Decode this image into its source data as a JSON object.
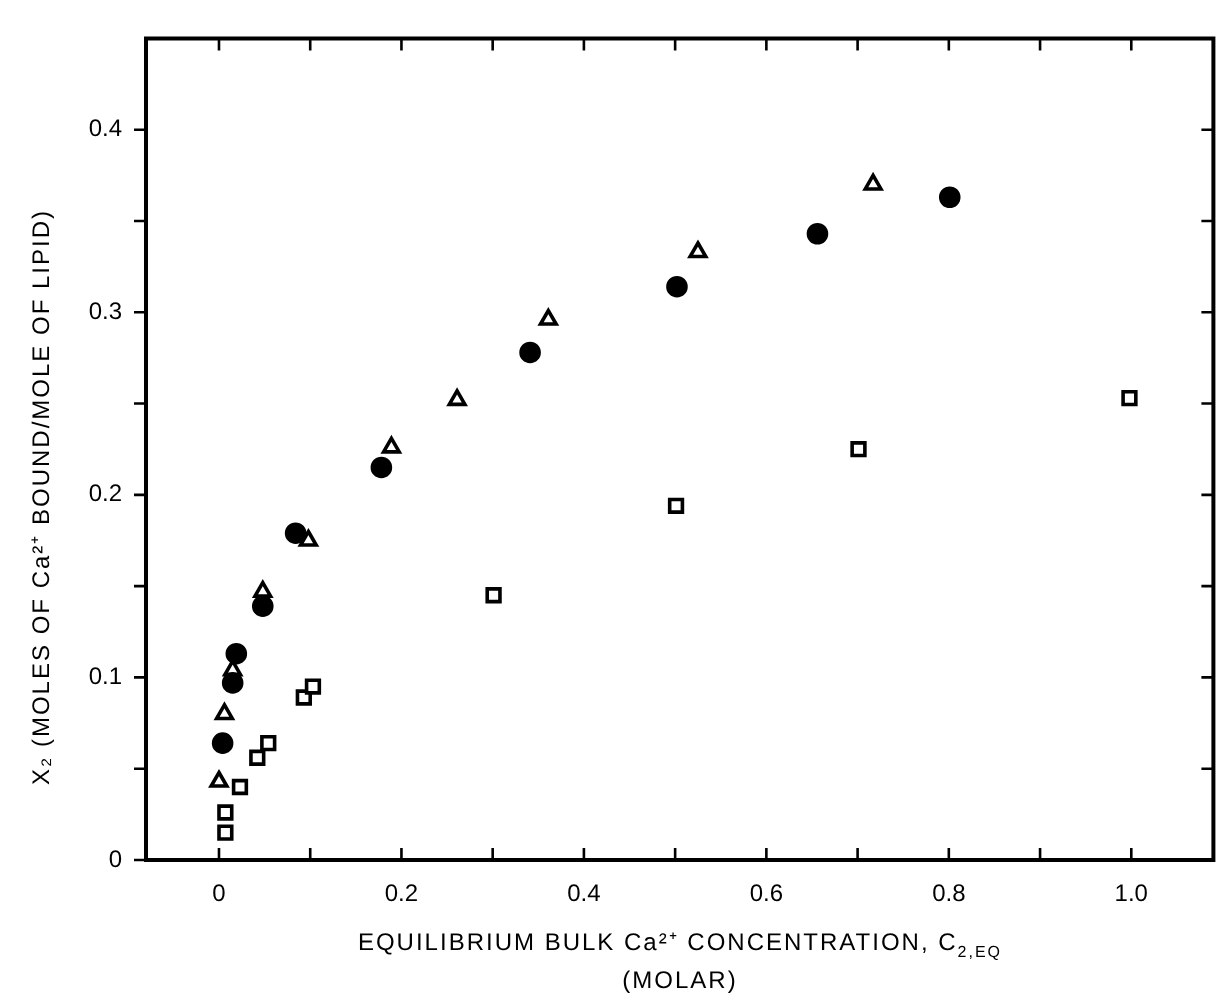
{
  "chart_data": {
    "type": "scatter",
    "xlabel": "EQUILIBRIUM BULK Ca²⁺ CONCENTRATION, C$_{2,EQ}$ (MOLAR)",
    "ylabel": "X₂ (MOLES OF Ca²⁺ BOUND/MOLE OF LIPID)",
    "xlim": [
      -0.08,
      1.09
    ],
    "ylim": [
      0,
      0.45
    ],
    "xticks": [
      0,
      {
        "value": 0.1,
        "label": null
      },
      0.2,
      {
        "value": 0.3,
        "label": null
      },
      0.4,
      {
        "value": 0.5,
        "label": null
      },
      0.6,
      {
        "value": 0.7,
        "label": null
      },
      0.8,
      {
        "value": 0.9,
        "label": null
      },
      {
        "value": 1,
        "label": "1.0"
      }
    ],
    "yticks": [
      0,
      {
        "value": 0.05,
        "label": null
      },
      0.1,
      {
        "value": 0.15,
        "label": null
      },
      0.2,
      {
        "value": 0.25,
        "label": null
      },
      0.3,
      {
        "value": 0.35,
        "label": null
      },
      0.4
    ],
    "grid": false,
    "legend": false,
    "series": [
      {
        "color": "#000000",
        "marker": "circle",
        "x": [
          0.004,
          0.015,
          0.019,
          0.048,
          0.084,
          0.178,
          0.341,
          0.502,
          0.656,
          0.801
        ],
        "values": [
          0.064,
          0.097,
          0.113,
          0.139,
          0.179,
          0.215,
          0.278,
          0.314,
          0.343,
          0.363
        ]
      },
      {
        "color": "#000000",
        "marker": "triangle",
        "x": [
          0.0,
          0.006,
          0.015,
          0.048,
          0.098,
          0.189,
          0.261,
          0.361,
          0.525,
          0.717
        ],
        "values": [
          0.043,
          0.08,
          0.104,
          0.147,
          0.175,
          0.226,
          0.252,
          0.296,
          0.333,
          0.37
        ]
      },
      {
        "color": "#000000",
        "marker": "square",
        "x": [
          0.007,
          0.007,
          0.023,
          0.042,
          0.054,
          0.093,
          0.103,
          0.301,
          0.501,
          0.701,
          0.998
        ],
        "values": [
          0.015,
          0.026,
          0.04,
          0.056,
          0.064,
          0.089,
          0.095,
          0.145,
          0.194,
          0.225,
          0.253
        ]
      }
    ]
  }
}
